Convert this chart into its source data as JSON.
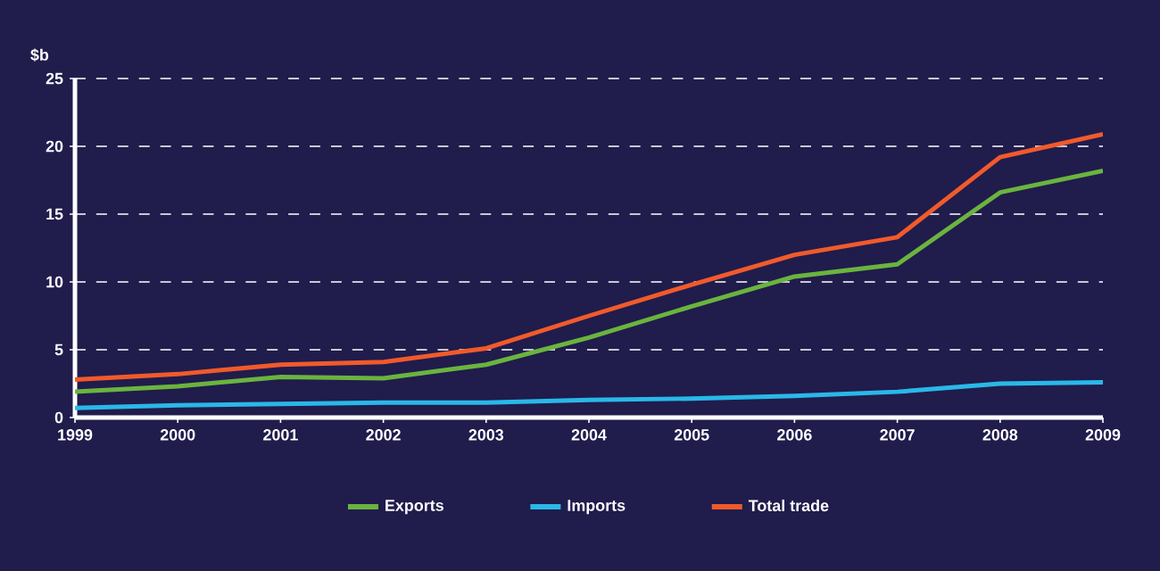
{
  "chart_data": {
    "type": "line",
    "ylabel": "$b",
    "x": [
      1999,
      2000,
      2001,
      2002,
      2003,
      2004,
      2005,
      2006,
      2007,
      2008,
      2009
    ],
    "series": [
      {
        "name": "Exports",
        "color": "#6ab43e",
        "values": [
          1.9,
          2.3,
          3.0,
          2.9,
          3.9,
          5.9,
          8.2,
          10.4,
          11.3,
          16.6,
          18.2
        ]
      },
      {
        "name": "Imports",
        "color": "#29b8e8",
        "values": [
          0.7,
          0.9,
          1.0,
          1.1,
          1.1,
          1.3,
          1.4,
          1.6,
          1.9,
          2.5,
          2.6
        ]
      },
      {
        "name": "Total trade",
        "color": "#f15a2b",
        "values": [
          2.8,
          3.2,
          3.9,
          4.1,
          5.1,
          7.5,
          9.8,
          12.0,
          13.3,
          19.2,
          20.9
        ]
      }
    ],
    "xlim": [
      1999,
      2009
    ],
    "xticks": [
      1999,
      2000,
      2001,
      2002,
      2003,
      2004,
      2005,
      2006,
      2007,
      2008,
      2009
    ],
    "ylim": [
      0,
      25
    ],
    "yticks": [
      0,
      5,
      10,
      15,
      20,
      25
    ],
    "grid": "y",
    "legend": "bottom",
    "marker": "none",
    "line_style": "solid"
  }
}
